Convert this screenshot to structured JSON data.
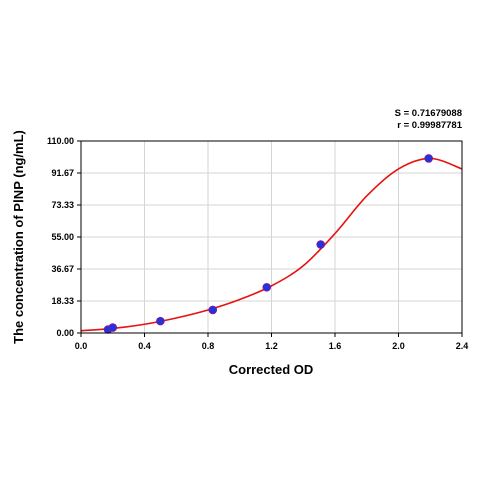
{
  "chart_data": {
    "type": "scatter",
    "title": "",
    "xlabel": "Corrected OD",
    "ylabel": "The concentration of PⅠNP (ng/mL)",
    "xlim": [
      0.0,
      2.4
    ],
    "ylim": [
      0.0,
      110.0
    ],
    "x_ticks": [
      "0.0",
      "0.4",
      "0.8",
      "1.2",
      "1.6",
      "2.0",
      "2.4"
    ],
    "y_ticks": [
      "0.00",
      "18.33",
      "36.67",
      "55.00",
      "73.33",
      "91.67",
      "110.00"
    ],
    "grid": true,
    "stats": {
      "s": "S = 0.71679088",
      "r": "r = 0.99987781"
    },
    "series": [
      {
        "kind": "points",
        "color": "#2233dd",
        "x": [
          0.17,
          0.2,
          0.5,
          0.83,
          1.17,
          1.51,
          2.19
        ],
        "y": [
          2.0,
          3.1,
          6.8,
          13.2,
          26.2,
          50.7,
          100.0
        ]
      },
      {
        "kind": "fitted-curve",
        "color": "#e81010",
        "x": [
          0.0,
          0.2,
          0.4,
          0.6,
          0.8,
          1.0,
          1.2,
          1.4,
          1.6,
          1.8,
          2.0,
          2.2,
          2.4
        ],
        "y": [
          1.3,
          2.6,
          5.0,
          8.6,
          13.2,
          19.2,
          27.0,
          38.5,
          57.0,
          78.5,
          94.0,
          100.0,
          94.0
        ]
      }
    ]
  }
}
